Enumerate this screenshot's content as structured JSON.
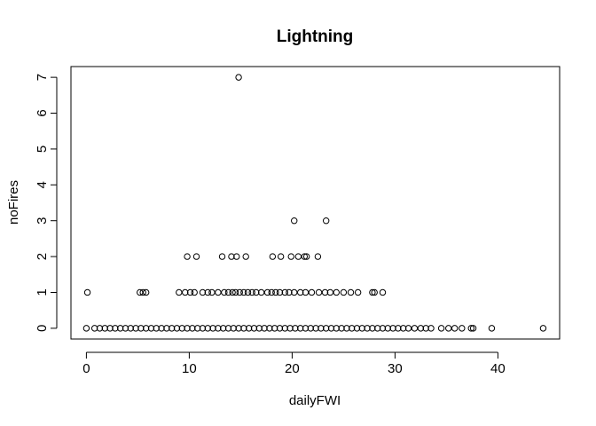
{
  "chart_data": {
    "type": "scatter",
    "title": "Lightning",
    "xlabel": "dailyFWI",
    "ylabel": "noFires",
    "xlim": [
      -1.5,
      46.0
    ],
    "ylim": [
      -0.3,
      7.3
    ],
    "x_ticks": [
      0,
      10,
      20,
      30,
      40
    ],
    "y_ticks": [
      0,
      1,
      2,
      3,
      4,
      5,
      6,
      7
    ],
    "grid": false,
    "legend": "none",
    "marker": "open-circle",
    "series": [
      {
        "points": [
          [
            14.8,
            7
          ],
          [
            20.2,
            3
          ],
          [
            23.3,
            3
          ],
          [
            9.8,
            2
          ],
          [
            10.7,
            2
          ],
          [
            13.2,
            2
          ],
          [
            14.1,
            2
          ],
          [
            14.6,
            2
          ],
          [
            15.5,
            2
          ],
          [
            18.1,
            2
          ],
          [
            18.9,
            2
          ],
          [
            19.9,
            2
          ],
          [
            20.6,
            2
          ],
          [
            21.2,
            2
          ],
          [
            21.4,
            2
          ],
          [
            22.5,
            2
          ],
          [
            0.1,
            1
          ],
          [
            5.2,
            1
          ],
          [
            5.5,
            1
          ],
          [
            5.8,
            1
          ],
          [
            9.0,
            1
          ],
          [
            9.6,
            1
          ],
          [
            10.1,
            1
          ],
          [
            10.5,
            1
          ],
          [
            11.3,
            1
          ],
          [
            11.8,
            1
          ],
          [
            12.2,
            1
          ],
          [
            12.8,
            1
          ],
          [
            13.4,
            1
          ],
          [
            13.8,
            1
          ],
          [
            14.2,
            1
          ],
          [
            14.5,
            1
          ],
          [
            14.9,
            1
          ],
          [
            15.3,
            1
          ],
          [
            15.7,
            1
          ],
          [
            16.1,
            1
          ],
          [
            16.5,
            1
          ],
          [
            17.0,
            1
          ],
          [
            17.6,
            1
          ],
          [
            18.0,
            1
          ],
          [
            18.4,
            1
          ],
          [
            18.8,
            1
          ],
          [
            19.3,
            1
          ],
          [
            19.7,
            1
          ],
          [
            20.2,
            1
          ],
          [
            20.8,
            1
          ],
          [
            21.3,
            1
          ],
          [
            21.9,
            1
          ],
          [
            22.6,
            1
          ],
          [
            23.2,
            1
          ],
          [
            23.7,
            1
          ],
          [
            24.3,
            1
          ],
          [
            25.0,
            1
          ],
          [
            25.7,
            1
          ],
          [
            26.4,
            1
          ],
          [
            27.8,
            1
          ],
          [
            28.0,
            1
          ],
          [
            28.8,
            1
          ],
          [
            0.0,
            0
          ],
          [
            0.8,
            0
          ],
          [
            1.3,
            0
          ],
          [
            1.8,
            0
          ],
          [
            2.3,
            0
          ],
          [
            2.8,
            0
          ],
          [
            3.3,
            0
          ],
          [
            3.8,
            0
          ],
          [
            4.3,
            0
          ],
          [
            4.8,
            0
          ],
          [
            5.3,
            0
          ],
          [
            5.8,
            0
          ],
          [
            6.3,
            0
          ],
          [
            6.8,
            0
          ],
          [
            7.3,
            0
          ],
          [
            7.8,
            0
          ],
          [
            8.3,
            0
          ],
          [
            8.8,
            0
          ],
          [
            9.3,
            0
          ],
          [
            9.8,
            0
          ],
          [
            10.3,
            0
          ],
          [
            10.8,
            0
          ],
          [
            11.3,
            0
          ],
          [
            11.8,
            0
          ],
          [
            12.3,
            0
          ],
          [
            12.8,
            0
          ],
          [
            13.3,
            0
          ],
          [
            13.8,
            0
          ],
          [
            14.3,
            0
          ],
          [
            14.8,
            0
          ],
          [
            15.3,
            0
          ],
          [
            15.8,
            0
          ],
          [
            16.3,
            0
          ],
          [
            16.8,
            0
          ],
          [
            17.3,
            0
          ],
          [
            17.8,
            0
          ],
          [
            18.3,
            0
          ],
          [
            18.8,
            0
          ],
          [
            19.3,
            0
          ],
          [
            19.8,
            0
          ],
          [
            20.3,
            0
          ],
          [
            20.8,
            0
          ],
          [
            21.3,
            0
          ],
          [
            21.8,
            0
          ],
          [
            22.3,
            0
          ],
          [
            22.8,
            0
          ],
          [
            23.3,
            0
          ],
          [
            23.8,
            0
          ],
          [
            24.3,
            0
          ],
          [
            24.8,
            0
          ],
          [
            25.3,
            0
          ],
          [
            25.8,
            0
          ],
          [
            26.3,
            0
          ],
          [
            26.8,
            0
          ],
          [
            27.3,
            0
          ],
          [
            27.8,
            0
          ],
          [
            28.3,
            0
          ],
          [
            28.8,
            0
          ],
          [
            29.3,
            0
          ],
          [
            29.8,
            0
          ],
          [
            30.3,
            0
          ],
          [
            30.8,
            0
          ],
          [
            31.3,
            0
          ],
          [
            31.9,
            0
          ],
          [
            32.5,
            0
          ],
          [
            33.0,
            0
          ],
          [
            33.5,
            0
          ],
          [
            34.5,
            0
          ],
          [
            35.2,
            0
          ],
          [
            35.8,
            0
          ],
          [
            36.5,
            0
          ],
          [
            37.4,
            0
          ],
          [
            37.6,
            0
          ],
          [
            39.4,
            0
          ],
          [
            44.4,
            0
          ]
        ]
      }
    ]
  }
}
